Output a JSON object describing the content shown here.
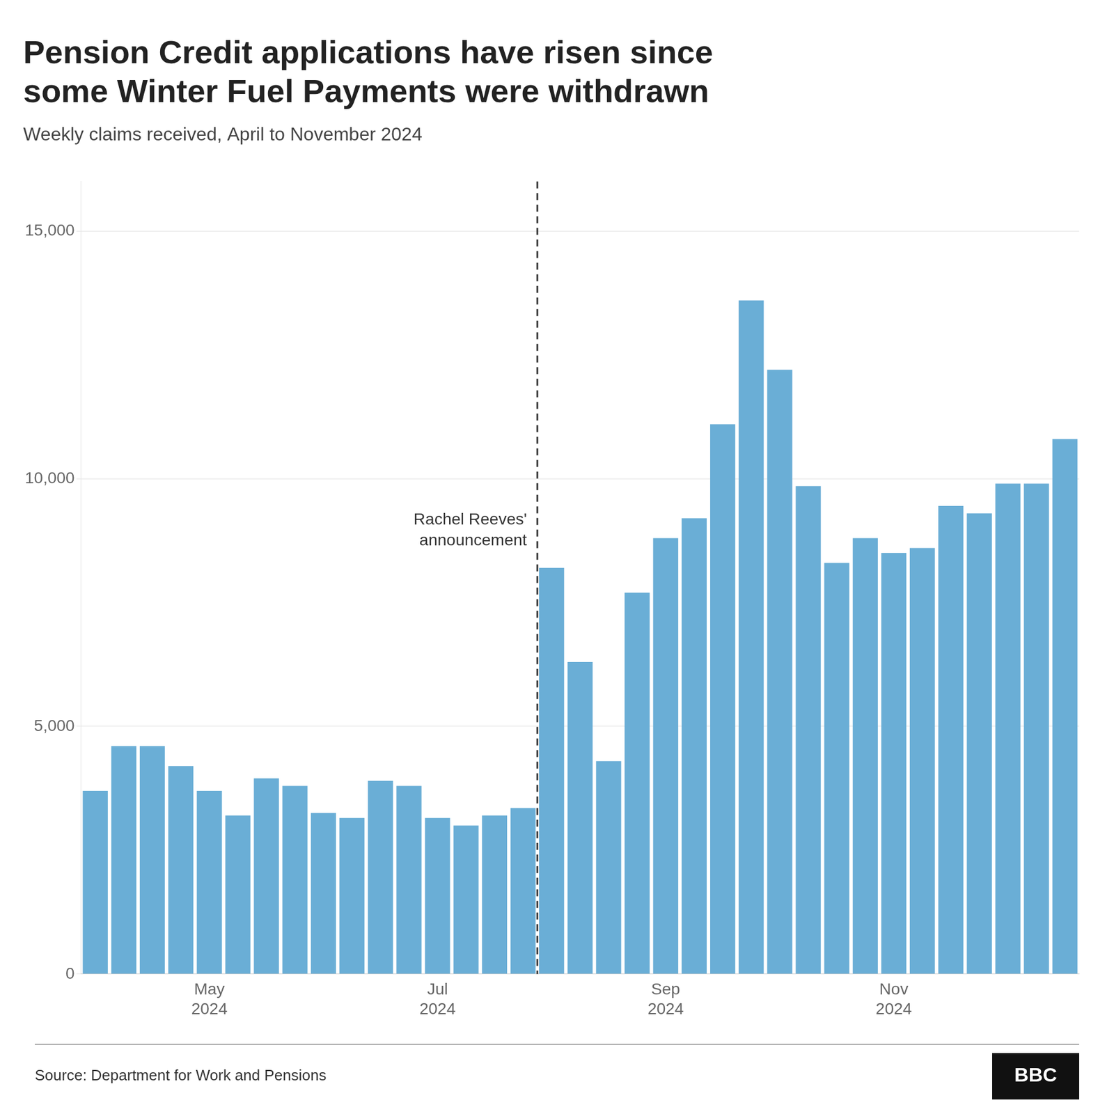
{
  "chart_data": {
    "type": "bar",
    "title": "Pension Credit applications have risen since\nsome Winter Fuel Payments were withdrawn",
    "subtitle": "Weekly claims received, April to November 2024",
    "source": "Source: Department for Work and Pensions",
    "logo": "BBC",
    "categories": [
      null,
      null,
      null,
      null,
      "May\n2024",
      null,
      null,
      null,
      null,
      null,
      null,
      null,
      "Jul\n2024",
      null,
      null,
      null,
      null,
      null,
      null,
      null,
      "Sep\n2024",
      null,
      null,
      null,
      null,
      null,
      null,
      null,
      "Nov\n2024",
      null,
      null,
      null,
      null,
      null,
      null
    ],
    "values": [
      3700,
      4600,
      4600,
      4200,
      3700,
      3200,
      3950,
      3800,
      3250,
      3150,
      3900,
      3800,
      3150,
      3000,
      3200,
      3350,
      8200,
      6300,
      4300,
      7700,
      8800,
      9200,
      11100,
      13600,
      12200,
      9850,
      8300,
      8800,
      8500,
      8600,
      9450,
      9300,
      9900,
      9900,
      10800
    ],
    "color": "#6aaed6",
    "annotations": [
      {
        "text": "Rachel Reeves'\nannouncement",
        "x": 16
      }
    ],
    "ylim": [
      0,
      16000
    ],
    "yticks": [
      0,
      {
        "value": 5000,
        "label": "5,000"
      },
      {
        "value": 10000,
        "label": "10,000"
      },
      {
        "value": 15000,
        "label": "15,000"
      }
    ],
    "grid": true
  }
}
